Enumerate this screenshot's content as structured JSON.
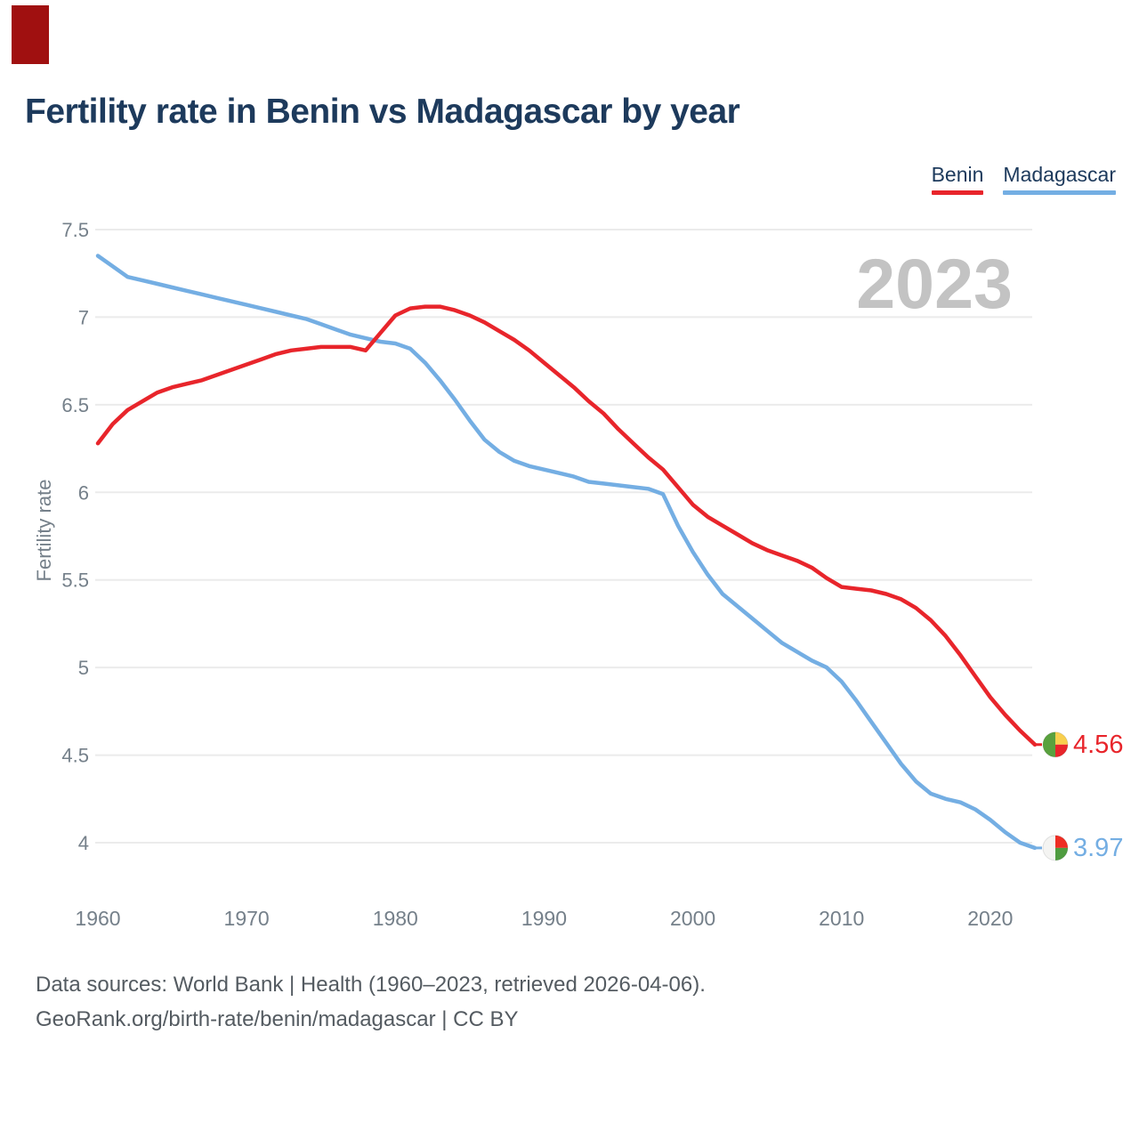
{
  "header": {
    "title": "Fertility rate in Benin vs Madagascar by year"
  },
  "legend": {
    "items": [
      {
        "label": "Benin",
        "color": "#e8252b"
      },
      {
        "label": "Madagascar",
        "color": "#74aee3"
      }
    ]
  },
  "watermark": {
    "text": "2023"
  },
  "footer": {
    "line1": "Data sources: World Bank | Health (1960–2023, retrieved 2026-04-06).",
    "line2": "GeoRank.org/birth-rate/benin/madagascar | CC BY"
  },
  "chart_data": {
    "type": "line",
    "title": "Fertility rate in Benin vs Madagascar by year",
    "xlabel": "",
    "ylabel": "Fertility rate",
    "x_min": 1960,
    "x_max": 2023,
    "x_step": 1,
    "x_ticks": [
      1960,
      1970,
      1980,
      1990,
      2000,
      2010,
      2020
    ],
    "y_ticks": [
      7.5,
      7,
      6.5,
      6,
      5.5,
      5,
      4.5,
      4
    ],
    "ylim": [
      3.8,
      7.6
    ],
    "grid": "horizontal",
    "legend_position": "top-right",
    "annotation_year": "2023",
    "series": [
      {
        "name": "Benin",
        "color": "#e8252b",
        "end_label": "4.56",
        "end_value": 4.56,
        "flag_icon": "benin-flag",
        "flag_colors": [
          "#59a13e",
          "#f8cf4e",
          "#e8252b"
        ],
        "values": [
          6.28,
          6.39,
          6.47,
          6.52,
          6.57,
          6.6,
          6.62,
          6.64,
          6.67,
          6.7,
          6.73,
          6.76,
          6.79,
          6.81,
          6.82,
          6.83,
          6.83,
          6.83,
          6.81,
          6.91,
          7.01,
          7.05,
          7.06,
          7.06,
          7.04,
          7.01,
          6.97,
          6.92,
          6.87,
          6.81,
          6.74,
          6.67,
          6.6,
          6.52,
          6.45,
          6.36,
          6.28,
          6.2,
          6.13,
          6.03,
          5.93,
          5.86,
          5.81,
          5.76,
          5.71,
          5.67,
          5.64,
          5.61,
          5.57,
          5.51,
          5.46,
          5.45,
          5.44,
          5.42,
          5.39,
          5.34,
          5.27,
          5.18,
          5.07,
          4.95,
          4.83,
          4.73,
          4.64,
          4.56
        ]
      },
      {
        "name": "Madagascar",
        "color": "#74aee3",
        "end_label": "3.97",
        "end_value": 3.97,
        "flag_icon": "madagascar-flag",
        "flag_colors": [
          "#f4f4f2",
          "#ee2e24",
          "#4f9c40"
        ],
        "values": [
          7.35,
          7.29,
          7.23,
          7.21,
          7.19,
          7.17,
          7.15,
          7.13,
          7.11,
          7.09,
          7.07,
          7.05,
          7.03,
          7.01,
          6.99,
          6.96,
          6.93,
          6.9,
          6.88,
          6.86,
          6.85,
          6.82,
          6.74,
          6.64,
          6.53,
          6.41,
          6.3,
          6.23,
          6.18,
          6.15,
          6.13,
          6.11,
          6.09,
          6.06,
          6.05,
          6.04,
          6.03,
          6.02,
          5.99,
          5.81,
          5.66,
          5.53,
          5.42,
          5.35,
          5.28,
          5.21,
          5.14,
          5.09,
          5.04,
          5.0,
          4.92,
          4.81,
          4.69,
          4.57,
          4.45,
          4.35,
          4.28,
          4.25,
          4.23,
          4.19,
          4.13,
          4.06,
          4.0,
          3.97
        ]
      }
    ]
  }
}
